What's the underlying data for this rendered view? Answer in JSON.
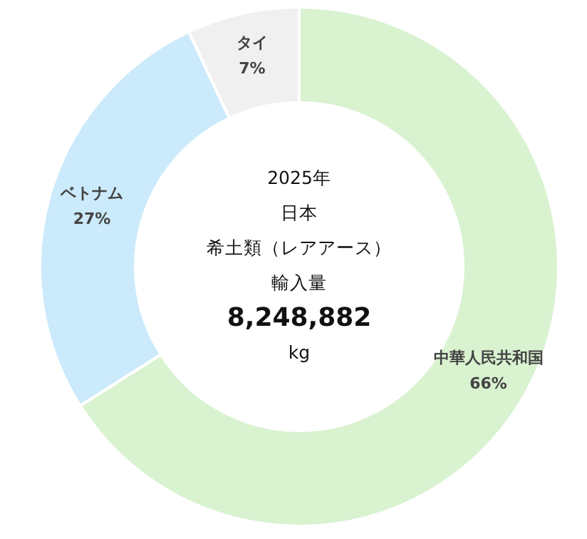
{
  "chart_data": {
    "type": "donut",
    "categories": [
      "中華人民共和国",
      "ベトナム",
      "タイ"
    ],
    "values": [
      66,
      27,
      7
    ],
    "value_labels": [
      "66%",
      "27%",
      "7%"
    ],
    "colors": [
      "#d9f2d0",
      "#cbeafb",
      "#f0f0f0"
    ],
    "annotations": [
      "2025年",
      "日本",
      "希土類（レアアース）",
      "輸入量",
      "8,248,882",
      "kg"
    ],
    "legend": false
  }
}
